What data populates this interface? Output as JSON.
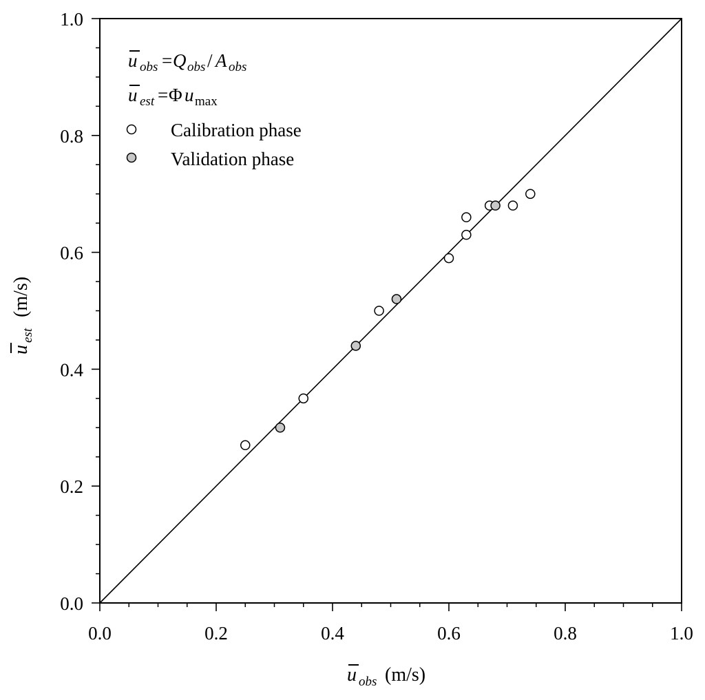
{
  "chart_data": {
    "type": "scatter",
    "title": "",
    "xlabel": {
      "symbol": "u",
      "sub": "obs",
      "unit": " (m/s)"
    },
    "ylabel": {
      "symbol": "u",
      "sub": "est",
      "unit": " (m/s)"
    },
    "xlim": [
      0.0,
      1.0
    ],
    "ylim": [
      0.0,
      1.0
    ],
    "xticks": [
      "0.0",
      "0.2",
      "0.4",
      "0.6",
      "0.8",
      "1.0"
    ],
    "yticks": [
      "0.0",
      "0.2",
      "0.4",
      "0.6",
      "0.8",
      "1.0"
    ],
    "grid": false,
    "legend_position": "top-left",
    "reference_line": {
      "name": "1:1 line",
      "from": [
        0,
        0
      ],
      "to": [
        1,
        1
      ]
    },
    "equations": {
      "obs": {
        "lhs_sub": "obs",
        "rhs": "Q",
        "rhs_sub": "obs",
        "slash": "/",
        "rhs2": "A",
        "rhs2_sub": "obs"
      },
      "est": {
        "lhs_sub": "est",
        "phi": "Φ",
        "rhs": "u",
        "rhs_sub": "max"
      }
    },
    "series": [
      {
        "name": "Calibration phase",
        "fill": "#ffffff",
        "points": [
          [
            0.25,
            0.27
          ],
          [
            0.35,
            0.35
          ],
          [
            0.48,
            0.5
          ],
          [
            0.6,
            0.59
          ],
          [
            0.63,
            0.63
          ],
          [
            0.63,
            0.66
          ],
          [
            0.67,
            0.68
          ],
          [
            0.71,
            0.68
          ],
          [
            0.74,
            0.7
          ]
        ]
      },
      {
        "name": "Validation phase",
        "fill": "#c8c8c8",
        "points": [
          [
            0.31,
            0.3
          ],
          [
            0.44,
            0.44
          ],
          [
            0.51,
            0.52
          ],
          [
            0.68,
            0.68
          ]
        ]
      }
    ]
  }
}
